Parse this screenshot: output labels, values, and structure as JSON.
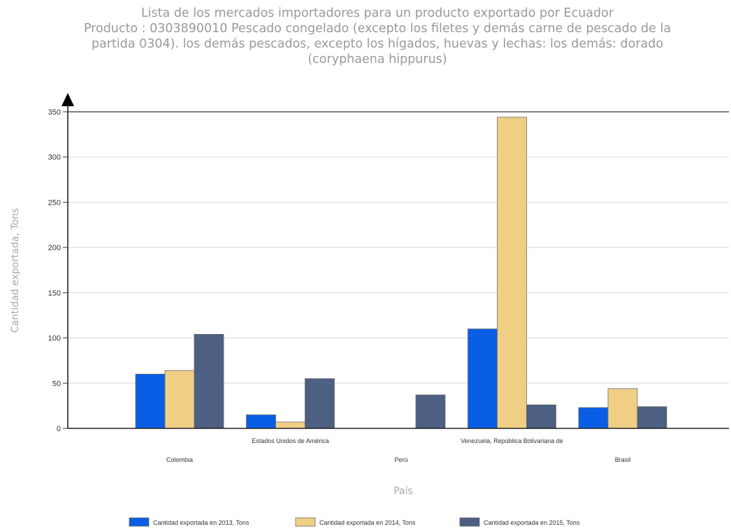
{
  "chart_data": {
    "type": "bar",
    "title_lines": [
      "Lista de los mercados importadores para un producto exportado por Ecuador",
      "Producto : 0303890010 Pescado congelado (excepto los filetes y demás carne de pescado de la",
      "partida 0304). los demás pescados, excepto los hígados, huevas y lechas: los demás: dorado",
      "(coryphaena hippurus)"
    ],
    "xlabel": "País",
    "ylabel": "Cantidad exportada, Tons",
    "ylim": [
      0,
      350
    ],
    "yticks": [
      "0",
      "50",
      "100",
      "150",
      "200",
      "250",
      "300",
      "350"
    ],
    "categories": [
      "Colombia",
      "Estados Unidos de América",
      "Perú",
      "Venezuela, República Bolivariana de",
      "Brasil"
    ],
    "series": [
      {
        "name": "Cantidad exportada en 2013, Tons",
        "color": "#0a5ee6",
        "values": [
          60,
          15,
          0,
          110,
          23
        ]
      },
      {
        "name": "Cantidad exportada en 2014, Tons",
        "color": "#f0cf85",
        "values": [
          64,
          7,
          0,
          344,
          44
        ]
      },
      {
        "name": "Cantidad exportada en 2015, Tons",
        "color": "#4d5f82",
        "values": [
          104,
          55,
          37,
          26,
          24
        ]
      }
    ],
    "grid": true,
    "legend_position": "bottom"
  }
}
